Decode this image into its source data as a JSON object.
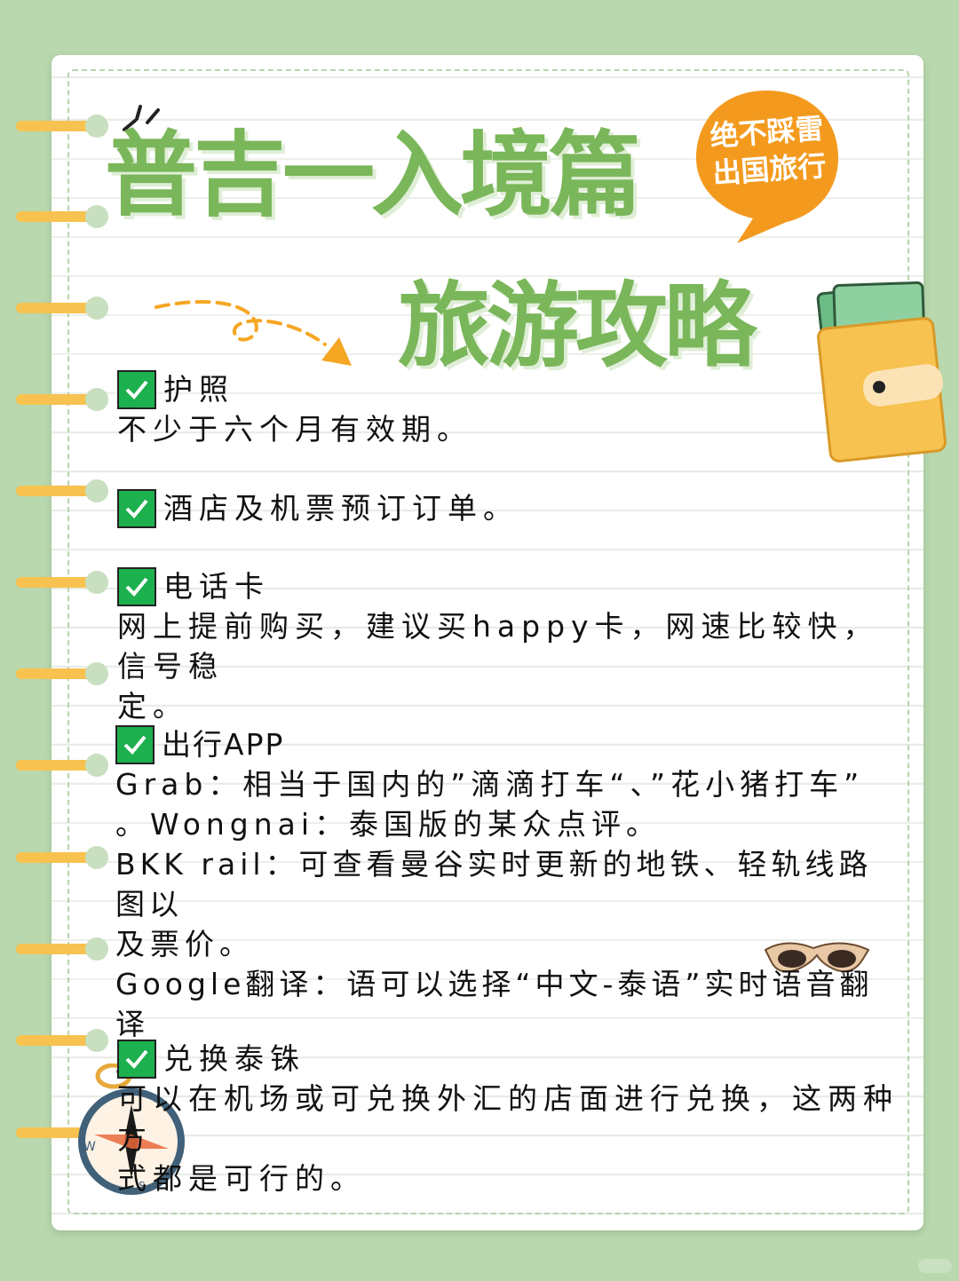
{
  "title": {
    "line1": "普吉一入境篇",
    "line2": "旅游攻略"
  },
  "badge": {
    "line1": "绝不踩雷",
    "line2": "出国旅行",
    "color": "#f39a1e"
  },
  "colors": {
    "background": "#b9d8ae",
    "title_green": "#7ab65a",
    "check_green": "#1db04e",
    "ring_yellow": "#f7c24f"
  },
  "items": [
    {
      "heading": "护照",
      "lines": [
        "不少于六个月有效期。"
      ]
    },
    {
      "heading": "酒店及机票预订订单。",
      "lines": []
    },
    {
      "heading": "电话卡",
      "lines": [
        "网上提前购买，建议买happy卡，网速比较快，信号稳",
        "定。"
      ]
    },
    {
      "heading": "出行APP",
      "lines": [
        "Grab：相当于国内的”滴滴打车“、”花小猪打车”",
        "。Wongnai：泰国版的某众点评。",
        "BKK rail：可查看曼谷实时更新的地铁、轻轨线路图以",
        "及票价。",
        "Google翻译：语可以选择“中文-泰语”实时语音翻译",
        "。"
      ]
    },
    {
      "heading": "兑换泰铢",
      "lines": [
        "可以在机场或可兑换外汇的店面进行兑换，这两种方",
        "式都是可行的。"
      ]
    }
  ],
  "icons": [
    "check-icon",
    "speech-bubble-icon",
    "dashed-arrow-icon",
    "wallet-icon",
    "sunglasses-icon",
    "compass-icon",
    "spark-lines-icon"
  ]
}
